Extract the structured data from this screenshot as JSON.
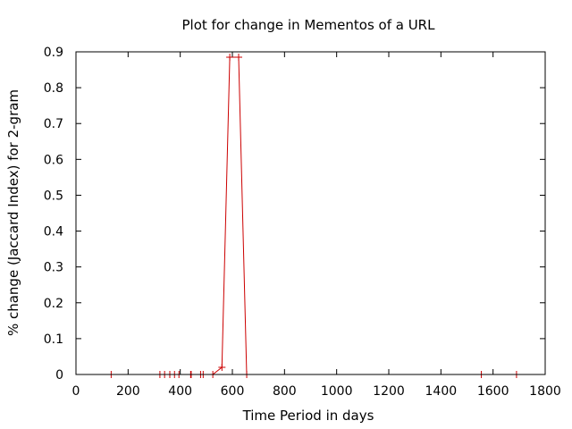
{
  "chart_data": {
    "type": "line",
    "title": "Plot for change in Mementos of a URL",
    "xlabel": "Time Period in days",
    "ylabel": "% change (Jaccard Index) for 2-gram",
    "xlim": [
      0,
      1800
    ],
    "ylim": [
      0,
      0.9
    ],
    "xticks": [
      0,
      200,
      400,
      600,
      800,
      1000,
      1200,
      1400,
      1600,
      1800
    ],
    "yticks": [
      0,
      0.1,
      0.2,
      0.3,
      0.4,
      0.5,
      0.6,
      0.7,
      0.8,
      0.9
    ],
    "xtick_labels": [
      "0",
      "200",
      "400",
      "600",
      "800",
      "1000",
      "1200",
      "1400",
      "1600",
      "1800"
    ],
    "ytick_labels": [
      "0",
      "0.1",
      "0.2",
      "0.3",
      "0.4",
      "0.5",
      "0.6",
      "0.7",
      "0.8",
      "0.9"
    ],
    "grid": false,
    "legend": "none",
    "series": [
      {
        "color": "#cc0000",
        "marker": "plus",
        "x": [
          135,
          322,
          340,
          360,
          378,
          395,
          440,
          442,
          478,
          488,
          525,
          560,
          590,
          624,
          655,
          1555,
          1690
        ],
        "y": [
          0,
          0,
          0,
          0,
          0,
          0,
          0,
          0,
          0,
          0,
          0,
          0.02,
          0.885,
          0.885,
          0,
          0,
          0
        ]
      }
    ]
  }
}
